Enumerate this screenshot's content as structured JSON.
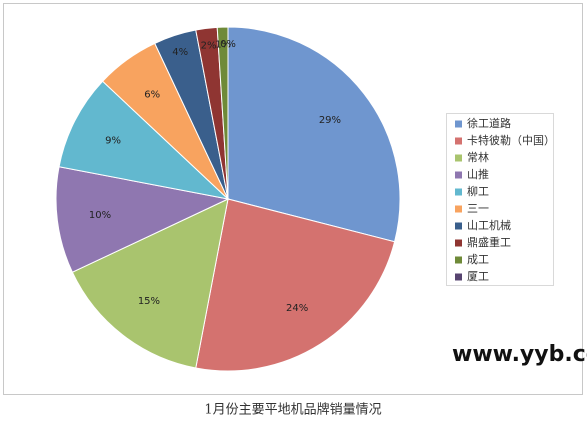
{
  "chart_data": {
    "type": "pie",
    "categories": [
      "徐工道路",
      "卡特彼勒（中国）",
      "常林",
      "山推",
      "柳工",
      "三一",
      "山工机械",
      "鼎盛重工",
      "成工",
      "厦工"
    ],
    "values": [
      29,
      24,
      15,
      10,
      9,
      6,
      4,
      2,
      1,
      0
    ],
    "value_labels": [
      "29%",
      "24%",
      "15%",
      "10%",
      "9%",
      "6%",
      "4%",
      "2%",
      "1%",
      "0%"
    ],
    "colors": [
      "#6f96cf",
      "#d4726f",
      "#a9c46e",
      "#8f77b0",
      "#62b8cf",
      "#f8a35f",
      "#3a5f8c",
      "#8f3532",
      "#6f8a38",
      "#574470"
    ],
    "watermark": "www.yyb.cc",
    "caption": "1月份主要平地机品牌销量情况"
  }
}
